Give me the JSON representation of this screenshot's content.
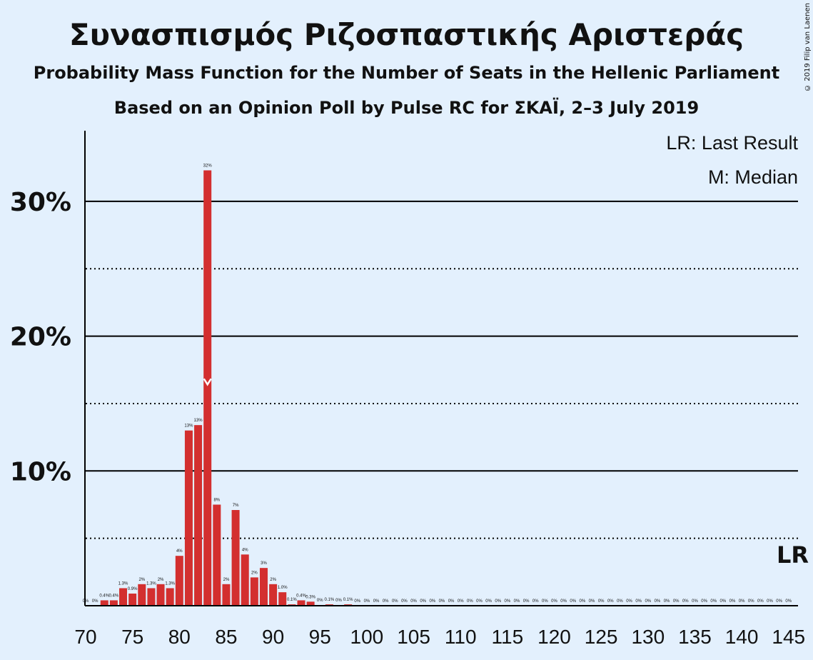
{
  "title": "Συνασπισμός Ριζοσπαστικής Αριστεράς",
  "subtitle": "Probability Mass Function for the Number of Seats in the Hellenic Parliament",
  "subtitle2": "Based on an Opinion Poll by Pulse RC for ΣΚΑΪ, 2–3 July 2019",
  "copyright": "© 2019 Filip van Laenen",
  "legend": {
    "lr": "LR: Last Result",
    "median": "M: Median"
  },
  "lr_marker": "LR",
  "colors": {
    "background": "#e3f0fd",
    "bar": "#d32f2f",
    "axis": "#000000"
  },
  "chart_data": {
    "type": "bar",
    "xlabel": "",
    "ylabel": "",
    "xlim": [
      70,
      145
    ],
    "ylim": [
      0,
      35
    ],
    "x_ticks": [
      70,
      75,
      80,
      85,
      90,
      95,
      100,
      105,
      110,
      115,
      120,
      125,
      130,
      135,
      140,
      145
    ],
    "y_ticks_major": [
      10,
      20,
      30
    ],
    "y_ticks_major_labels": [
      "10%",
      "20%",
      "30%"
    ],
    "y_ticks_minor": [
      5,
      15,
      25
    ],
    "median": 83,
    "last_result": 145,
    "categories": [
      70,
      71,
      72,
      73,
      74,
      75,
      76,
      77,
      78,
      79,
      80,
      81,
      82,
      83,
      84,
      85,
      86,
      87,
      88,
      89,
      90,
      91,
      92,
      93,
      94,
      95,
      96,
      97,
      98,
      99,
      100,
      101,
      102,
      103,
      104,
      105,
      106,
      107,
      108,
      109,
      110,
      111,
      112,
      113,
      114,
      115,
      116,
      117,
      118,
      119,
      120,
      121,
      122,
      123,
      124,
      125,
      126,
      127,
      128,
      129,
      130,
      131,
      132,
      133,
      134,
      135,
      136,
      137,
      138,
      139,
      140,
      141,
      142,
      143,
      144,
      145
    ],
    "values": [
      0,
      0,
      0.4,
      0.4,
      1.3,
      0.9,
      1.6,
      1.3,
      1.6,
      1.3,
      3.7,
      13.0,
      13.4,
      32.3,
      7.5,
      1.6,
      7.1,
      3.8,
      2.1,
      2.8,
      1.6,
      1.0,
      0.1,
      0.4,
      0.3,
      0.05,
      0.1,
      0.05,
      0.1,
      0,
      0,
      0,
      0,
      0,
      0,
      0,
      0,
      0,
      0,
      0,
      0,
      0,
      0,
      0,
      0,
      0,
      0,
      0,
      0,
      0,
      0,
      0,
      0,
      0,
      0,
      0,
      0,
      0,
      0,
      0,
      0,
      0,
      0,
      0,
      0,
      0,
      0,
      0,
      0,
      0,
      0,
      0,
      0,
      0,
      0,
      0
    ],
    "labels": [
      "0%",
      "0%",
      "0.4%",
      "0.4%",
      "1.3%",
      "0.9%",
      "2%",
      "1.3%",
      "2%",
      "1.3%",
      "4%",
      "13%",
      "13%",
      "32%",
      "8%",
      "2%",
      "7%",
      "4%",
      "2%",
      "3%",
      "2%",
      "1.0%",
      "0.1%",
      "0.4%",
      "0.3%",
      "0%",
      "0.1%",
      "0%",
      "0.1%",
      "0%",
      "0%",
      "0%",
      "0%",
      "0%",
      "0%",
      "0%",
      "0%",
      "0%",
      "0%",
      "0%",
      "0%",
      "0%",
      "0%",
      "0%",
      "0%",
      "0%",
      "0%",
      "0%",
      "0%",
      "0%",
      "0%",
      "0%",
      "0%",
      "0%",
      "0%",
      "0%",
      "0%",
      "0%",
      "0%",
      "0%",
      "0%",
      "0%",
      "0%",
      "0%",
      "0%",
      "0%",
      "0%",
      "0%",
      "0%",
      "0%",
      "0%",
      "0%",
      "0%",
      "0%",
      "0%",
      "0%"
    ]
  }
}
